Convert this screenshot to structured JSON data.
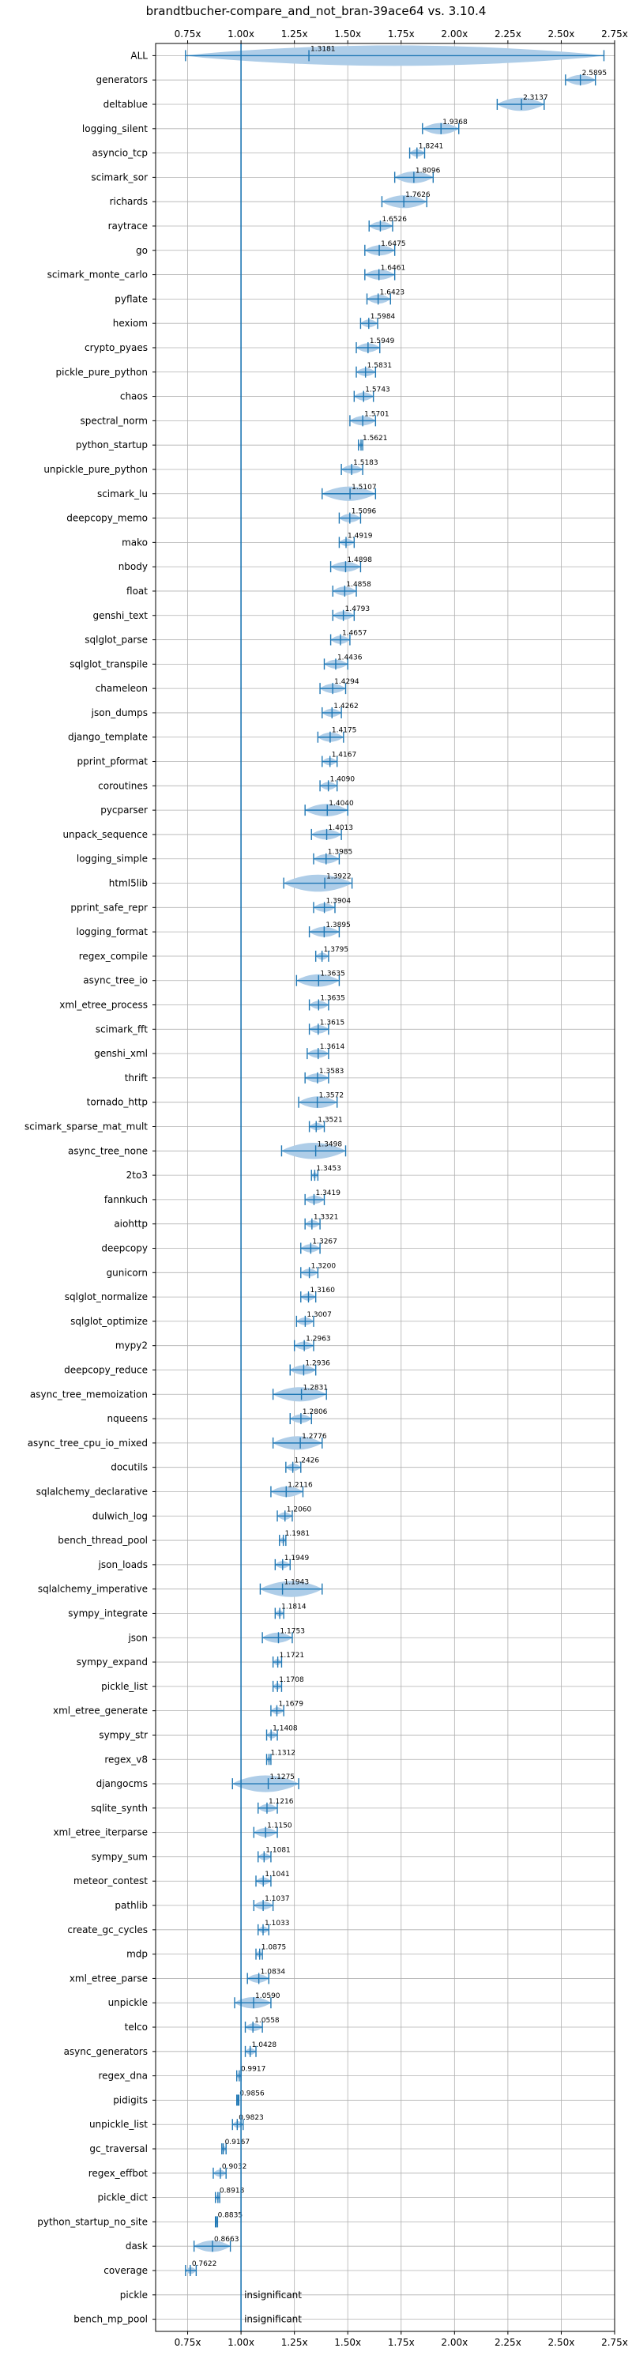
{
  "chart_data": {
    "type": "violin",
    "title": "brandtbucher-compare_and_not_bran-39ace64 vs. 3.10.4",
    "xlim": [
      0.6,
      2.75
    ],
    "xticks": [
      0.75,
      1.0,
      1.25,
      1.5,
      1.75,
      2.0,
      2.25,
      2.5,
      2.75
    ],
    "xtick_labels": [
      "0.75x",
      "1.00x",
      "1.25x",
      "1.50x",
      "1.75x",
      "2.00x",
      "2.25x",
      "2.50x",
      "2.75x"
    ],
    "reference_line": 1.0,
    "grid": true,
    "colors": {
      "violin": "#aecde8",
      "errorbar": "#1f77b4",
      "reference": "#1f77b4"
    },
    "benchmarks": [
      {
        "name": "ALL",
        "value": 1.3181,
        "label": "1.3181",
        "lo": 0.74,
        "hi": 2.7
      },
      {
        "name": "generators",
        "value": 2.5895,
        "label": "2.5895",
        "lo": 2.52,
        "hi": 2.66
      },
      {
        "name": "deltablue",
        "value": 2.3137,
        "label": "2.3137",
        "lo": 2.2,
        "hi": 2.42
      },
      {
        "name": "logging_silent",
        "value": 1.9368,
        "label": "1.9368",
        "lo": 1.85,
        "hi": 2.02
      },
      {
        "name": "asyncio_tcp",
        "value": 1.8241,
        "label": "1.8241",
        "lo": 1.79,
        "hi": 1.86
      },
      {
        "name": "scimark_sor",
        "value": 1.8096,
        "label": "1.8096",
        "lo": 1.72,
        "hi": 1.9
      },
      {
        "name": "richards",
        "value": 1.7626,
        "label": "1.7626",
        "lo": 1.66,
        "hi": 1.87
      },
      {
        "name": "raytrace",
        "value": 1.6526,
        "label": "1.6526",
        "lo": 1.6,
        "hi": 1.71
      },
      {
        "name": "go",
        "value": 1.6475,
        "label": "1.6475",
        "lo": 1.58,
        "hi": 1.72
      },
      {
        "name": "scimark_monte_carlo",
        "value": 1.6461,
        "label": "1.6461",
        "lo": 1.58,
        "hi": 1.72
      },
      {
        "name": "pyflate",
        "value": 1.6423,
        "label": "1.6423",
        "lo": 1.59,
        "hi": 1.7
      },
      {
        "name": "hexiom",
        "value": 1.5984,
        "label": "1.5984",
        "lo": 1.56,
        "hi": 1.64
      },
      {
        "name": "crypto_pyaes",
        "value": 1.5949,
        "label": "1.5949",
        "lo": 1.54,
        "hi": 1.65
      },
      {
        "name": "pickle_pure_python",
        "value": 1.5831,
        "label": "1.5831",
        "lo": 1.54,
        "hi": 1.63
      },
      {
        "name": "chaos",
        "value": 1.5743,
        "label": "1.5743",
        "lo": 1.53,
        "hi": 1.62
      },
      {
        "name": "spectral_norm",
        "value": 1.5701,
        "label": "1.5701",
        "lo": 1.51,
        "hi": 1.63
      },
      {
        "name": "python_startup",
        "value": 1.5621,
        "label": "1.5621",
        "lo": 1.55,
        "hi": 1.57
      },
      {
        "name": "unpickle_pure_python",
        "value": 1.5183,
        "label": "1.5183",
        "lo": 1.47,
        "hi": 1.57
      },
      {
        "name": "scimark_lu",
        "value": 1.5107,
        "label": "1.5107",
        "lo": 1.38,
        "hi": 1.63
      },
      {
        "name": "deepcopy_memo",
        "value": 1.5096,
        "label": "1.5096",
        "lo": 1.46,
        "hi": 1.56
      },
      {
        "name": "mako",
        "value": 1.4919,
        "label": "1.4919",
        "lo": 1.46,
        "hi": 1.53
      },
      {
        "name": "nbody",
        "value": 1.4898,
        "label": "1.4898",
        "lo": 1.42,
        "hi": 1.56
      },
      {
        "name": "float",
        "value": 1.4858,
        "label": "1.4858",
        "lo": 1.43,
        "hi": 1.54
      },
      {
        "name": "genshi_text",
        "value": 1.4793,
        "label": "1.4793",
        "lo": 1.43,
        "hi": 1.53
      },
      {
        "name": "sqlglot_parse",
        "value": 1.4657,
        "label": "1.4657",
        "lo": 1.42,
        "hi": 1.51
      },
      {
        "name": "sqlglot_transpile",
        "value": 1.4436,
        "label": "1.4436",
        "lo": 1.39,
        "hi": 1.5
      },
      {
        "name": "chameleon",
        "value": 1.4294,
        "label": "1.4294",
        "lo": 1.37,
        "hi": 1.49
      },
      {
        "name": "json_dumps",
        "value": 1.4262,
        "label": "1.4262",
        "lo": 1.38,
        "hi": 1.47
      },
      {
        "name": "django_template",
        "value": 1.4175,
        "label": "1.4175",
        "lo": 1.36,
        "hi": 1.48
      },
      {
        "name": "pprint_pformat",
        "value": 1.4167,
        "label": "1.4167",
        "lo": 1.38,
        "hi": 1.45
      },
      {
        "name": "coroutines",
        "value": 1.409,
        "label": "1.4090",
        "lo": 1.37,
        "hi": 1.45
      },
      {
        "name": "pycparser",
        "value": 1.404,
        "label": "1.4040",
        "lo": 1.3,
        "hi": 1.5
      },
      {
        "name": "unpack_sequence",
        "value": 1.4013,
        "label": "1.4013",
        "lo": 1.33,
        "hi": 1.47
      },
      {
        "name": "logging_simple",
        "value": 1.3985,
        "label": "1.3985",
        "lo": 1.34,
        "hi": 1.46
      },
      {
        "name": "html5lib",
        "value": 1.3922,
        "label": "1.3922",
        "lo": 1.2,
        "hi": 1.52
      },
      {
        "name": "pprint_safe_repr",
        "value": 1.3904,
        "label": "1.3904",
        "lo": 1.34,
        "hi": 1.44
      },
      {
        "name": "logging_format",
        "value": 1.3895,
        "label": "1.3895",
        "lo": 1.32,
        "hi": 1.46
      },
      {
        "name": "regex_compile",
        "value": 1.3795,
        "label": "1.3795",
        "lo": 1.35,
        "hi": 1.41
      },
      {
        "name": "async_tree_io",
        "value": 1.3635,
        "label": "1.3635",
        "lo": 1.26,
        "hi": 1.46
      },
      {
        "name": "xml_etree_process",
        "value": 1.3635,
        "label": "1.3635",
        "lo": 1.32,
        "hi": 1.41
      },
      {
        "name": "scimark_fft",
        "value": 1.3615,
        "label": "1.3615",
        "lo": 1.32,
        "hi": 1.41
      },
      {
        "name": "genshi_xml",
        "value": 1.3614,
        "label": "1.3614",
        "lo": 1.31,
        "hi": 1.41
      },
      {
        "name": "thrift",
        "value": 1.3583,
        "label": "1.3583",
        "lo": 1.3,
        "hi": 1.41
      },
      {
        "name": "tornado_http",
        "value": 1.3572,
        "label": "1.3572",
        "lo": 1.27,
        "hi": 1.45
      },
      {
        "name": "scimark_sparse_mat_mult",
        "value": 1.3521,
        "label": "1.3521",
        "lo": 1.32,
        "hi": 1.39
      },
      {
        "name": "async_tree_none",
        "value": 1.3498,
        "label": "1.3498",
        "lo": 1.19,
        "hi": 1.49
      },
      {
        "name": "2to3",
        "value": 1.3453,
        "label": "1.3453",
        "lo": 1.33,
        "hi": 1.36
      },
      {
        "name": "fannkuch",
        "value": 1.3419,
        "label": "1.3419",
        "lo": 1.3,
        "hi": 1.39
      },
      {
        "name": "aiohttp",
        "value": 1.3321,
        "label": "1.3321",
        "lo": 1.3,
        "hi": 1.37
      },
      {
        "name": "deepcopy",
        "value": 1.3267,
        "label": "1.3267",
        "lo": 1.28,
        "hi": 1.37
      },
      {
        "name": "gunicorn",
        "value": 1.32,
        "label": "1.3200",
        "lo": 1.28,
        "hi": 1.36
      },
      {
        "name": "sqlglot_normalize",
        "value": 1.316,
        "label": "1.3160",
        "lo": 1.28,
        "hi": 1.35
      },
      {
        "name": "sqlglot_optimize",
        "value": 1.3007,
        "label": "1.3007",
        "lo": 1.26,
        "hi": 1.34
      },
      {
        "name": "mypy2",
        "value": 1.2963,
        "label": "1.2963",
        "lo": 1.25,
        "hi": 1.34
      },
      {
        "name": "deepcopy_reduce",
        "value": 1.2936,
        "label": "1.2936",
        "lo": 1.23,
        "hi": 1.35
      },
      {
        "name": "async_tree_memoization",
        "value": 1.2831,
        "label": "1.2831",
        "lo": 1.15,
        "hi": 1.4
      },
      {
        "name": "nqueens",
        "value": 1.2806,
        "label": "1.2806",
        "lo": 1.23,
        "hi": 1.33
      },
      {
        "name": "async_tree_cpu_io_mixed",
        "value": 1.2776,
        "label": "1.2776",
        "lo": 1.15,
        "hi": 1.38
      },
      {
        "name": "docutils",
        "value": 1.2426,
        "label": "1.2426",
        "lo": 1.21,
        "hi": 1.28
      },
      {
        "name": "sqlalchemy_declarative",
        "value": 1.2116,
        "label": "1.2116",
        "lo": 1.14,
        "hi": 1.29
      },
      {
        "name": "dulwich_log",
        "value": 1.206,
        "label": "1.2060",
        "lo": 1.17,
        "hi": 1.24
      },
      {
        "name": "bench_thread_pool",
        "value": 1.1981,
        "label": "1.1981",
        "lo": 1.18,
        "hi": 1.21
      },
      {
        "name": "json_loads",
        "value": 1.1949,
        "label": "1.1949",
        "lo": 1.16,
        "hi": 1.23
      },
      {
        "name": "sqlalchemy_imperative",
        "value": 1.1943,
        "label": "1.1943",
        "lo": 1.09,
        "hi": 1.38
      },
      {
        "name": "sympy_integrate",
        "value": 1.1814,
        "label": "1.1814",
        "lo": 1.16,
        "hi": 1.2
      },
      {
        "name": "json",
        "value": 1.1753,
        "label": "1.1753",
        "lo": 1.1,
        "hi": 1.24
      },
      {
        "name": "sympy_expand",
        "value": 1.1721,
        "label": "1.1721",
        "lo": 1.15,
        "hi": 1.19
      },
      {
        "name": "pickle_list",
        "value": 1.1708,
        "label": "1.1708",
        "lo": 1.15,
        "hi": 1.19
      },
      {
        "name": "xml_etree_generate",
        "value": 1.1679,
        "label": "1.1679",
        "lo": 1.14,
        "hi": 1.2
      },
      {
        "name": "sympy_str",
        "value": 1.1408,
        "label": "1.1408",
        "lo": 1.12,
        "hi": 1.17
      },
      {
        "name": "regex_v8",
        "value": 1.1312,
        "label": "1.1312",
        "lo": 1.12,
        "hi": 1.14
      },
      {
        "name": "djangocms",
        "value": 1.1275,
        "label": "1.1275",
        "lo": 0.96,
        "hi": 1.27
      },
      {
        "name": "sqlite_synth",
        "value": 1.1216,
        "label": "1.1216",
        "lo": 1.08,
        "hi": 1.17
      },
      {
        "name": "xml_etree_iterparse",
        "value": 1.115,
        "label": "1.1150",
        "lo": 1.06,
        "hi": 1.17
      },
      {
        "name": "sympy_sum",
        "value": 1.1081,
        "label": "1.1081",
        "lo": 1.08,
        "hi": 1.14
      },
      {
        "name": "meteor_contest",
        "value": 1.1041,
        "label": "1.1041",
        "lo": 1.07,
        "hi": 1.14
      },
      {
        "name": "pathlib",
        "value": 1.1037,
        "label": "1.1037",
        "lo": 1.06,
        "hi": 1.15
      },
      {
        "name": "create_gc_cycles",
        "value": 1.1033,
        "label": "1.1033",
        "lo": 1.08,
        "hi": 1.13
      },
      {
        "name": "mdp",
        "value": 1.0875,
        "label": "1.0875",
        "lo": 1.07,
        "hi": 1.1
      },
      {
        "name": "xml_etree_parse",
        "value": 1.0834,
        "label": "1.0834",
        "lo": 1.03,
        "hi": 1.13
      },
      {
        "name": "unpickle",
        "value": 1.059,
        "label": "1.0590",
        "lo": 0.97,
        "hi": 1.14
      },
      {
        "name": "telco",
        "value": 1.0558,
        "label": "1.0558",
        "lo": 1.02,
        "hi": 1.1
      },
      {
        "name": "async_generators",
        "value": 1.0428,
        "label": "1.0428",
        "lo": 1.02,
        "hi": 1.07
      },
      {
        "name": "regex_dna",
        "value": 0.9917,
        "label": "0.9917",
        "lo": 0.98,
        "hi": 1.0
      },
      {
        "name": "pidigits",
        "value": 0.9856,
        "label": "0.9856",
        "lo": 0.98,
        "hi": 0.99
      },
      {
        "name": "unpickle_list",
        "value": 0.9823,
        "label": "0.9823",
        "lo": 0.96,
        "hi": 1.01
      },
      {
        "name": "gc_traversal",
        "value": 0.9167,
        "label": "0.9167",
        "lo": 0.91,
        "hi": 0.93
      },
      {
        "name": "regex_effbot",
        "value": 0.9032,
        "label": "0.9032",
        "lo": 0.87,
        "hi": 0.93
      },
      {
        "name": "pickle_dict",
        "value": 0.8918,
        "label": "0.8918",
        "lo": 0.88,
        "hi": 0.9
      },
      {
        "name": "python_startup_no_site",
        "value": 0.8835,
        "label": "0.8835",
        "lo": 0.88,
        "hi": 0.89
      },
      {
        "name": "dask",
        "value": 0.8663,
        "label": "0.8663",
        "lo": 0.78,
        "hi": 0.95
      },
      {
        "name": "coverage",
        "value": 0.7622,
        "label": "0.7622",
        "lo": 0.74,
        "hi": 0.79
      },
      {
        "name": "pickle",
        "value": null,
        "label": "insignificant",
        "lo": null,
        "hi": null
      },
      {
        "name": "bench_mp_pool",
        "value": null,
        "label": "insignificant",
        "lo": null,
        "hi": null
      }
    ]
  }
}
